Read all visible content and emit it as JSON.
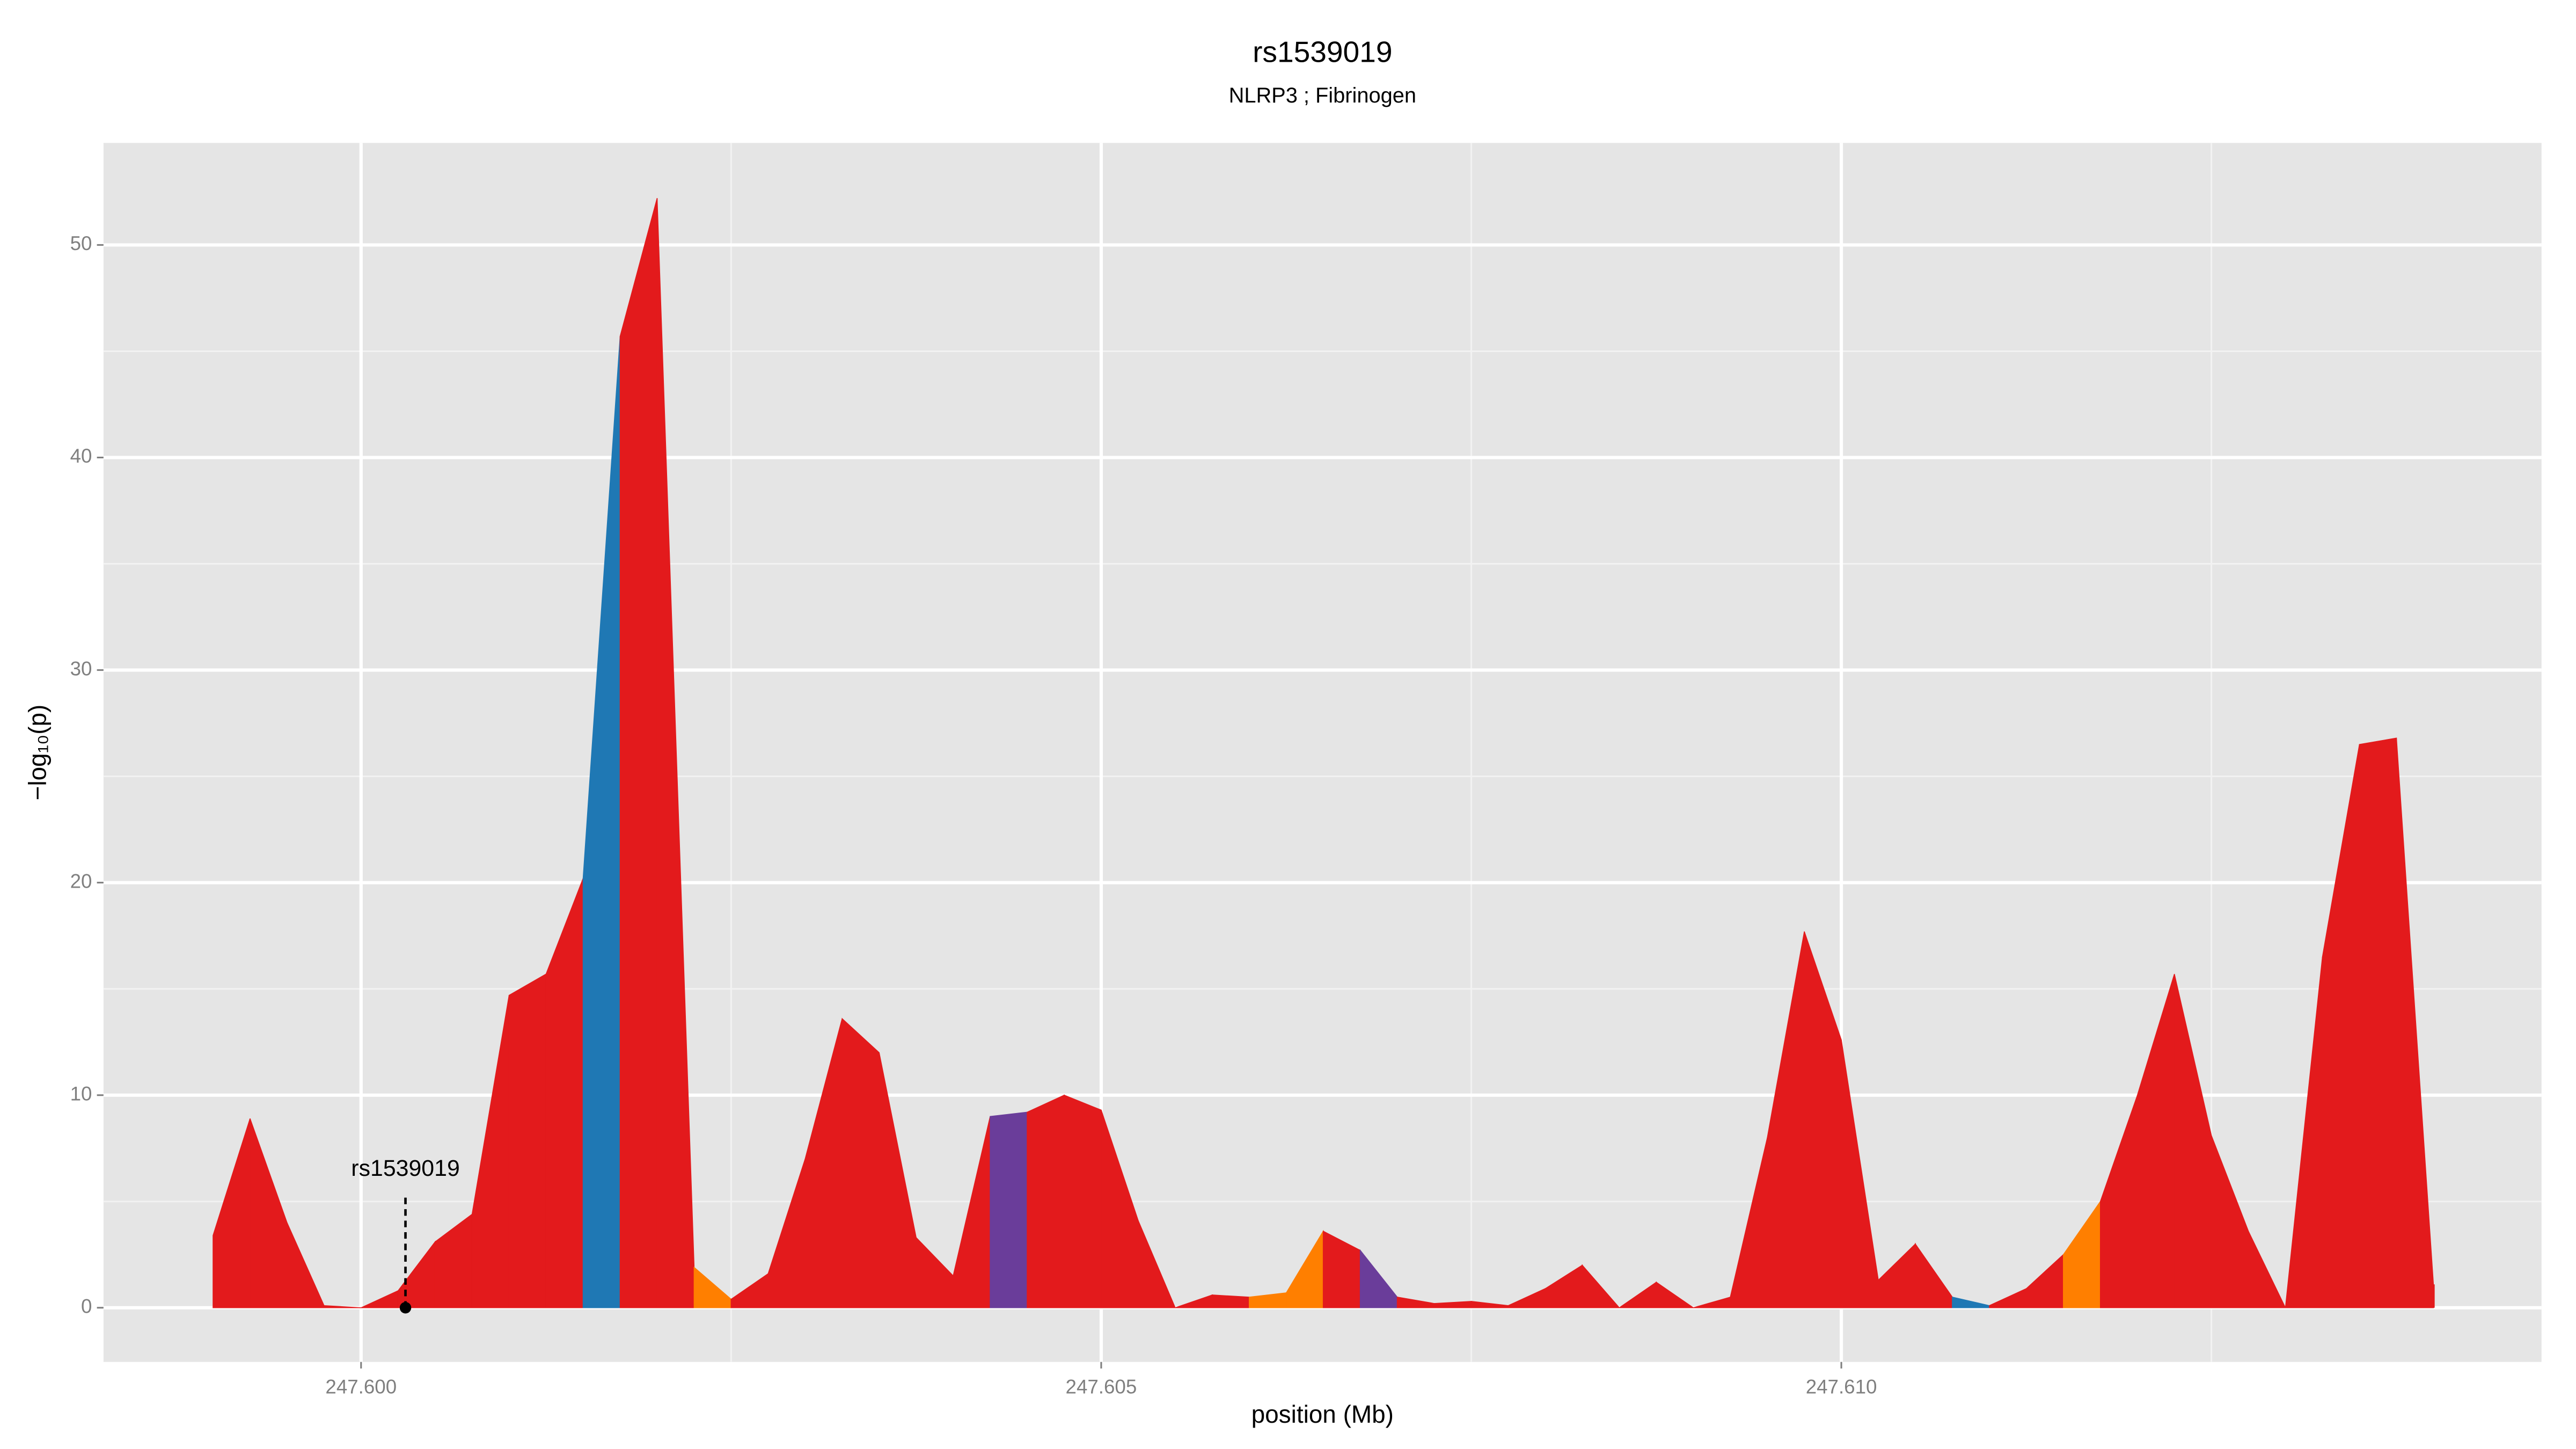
{
  "chart_data": {
    "type": "area",
    "title": "rs1539019",
    "subtitle": "NLRP3 ; Fibrinogen",
    "x_label": "position (Mb)",
    "y_label": "−log₁₀(p)",
    "x": [
      247.599,
      247.59925,
      247.5995,
      247.59975,
      247.6,
      247.60025,
      247.6005,
      247.60075,
      247.601,
      247.60125,
      247.6015,
      247.60175,
      247.602,
      247.60225,
      247.6025,
      247.60275,
      247.603,
      247.60325,
      247.6035,
      247.60375,
      247.604,
      247.60425,
      247.6045,
      247.60475,
      247.605,
      247.60525,
      247.6055,
      247.60575,
      247.606,
      247.60625,
      247.6065,
      247.60675,
      247.607,
      247.60725,
      247.6075,
      247.60775,
      247.608,
      247.60825,
      247.6085,
      247.60875,
      247.609,
      247.60925,
      247.6095,
      247.60975,
      247.61,
      247.61025,
      247.6105,
      247.61075,
      247.611,
      247.61125,
      247.6115,
      247.61175,
      247.612,
      247.61225,
      247.6125,
      247.61275,
      247.613,
      247.61325,
      247.6135,
      247.61375,
      247.614
    ],
    "values": [
      3.4,
      8.9,
      4.0,
      0.1,
      0,
      0.8,
      3.1,
      4.4,
      14.7,
      15.7,
      20.2,
      45.7,
      52.2,
      1.9,
      0.4,
      1.6,
      7.0,
      13.6,
      12.0,
      3.3,
      1.5,
      9.0,
      9.2,
      10.0,
      9.3,
      4.1,
      0,
      0.6,
      0.5,
      0.7,
      3.6,
      2.7,
      0.5,
      0.2,
      0.3,
      0.1,
      0.9,
      2.0,
      0,
      1.2,
      0,
      0.5,
      8.0,
      17.7,
      12.6,
      1.3,
      3.0,
      0.5,
      0.1,
      0.9,
      2.5,
      5.0,
      10.0,
      15.7,
      8.1,
      3.6,
      0,
      16.5,
      26.5,
      26.8,
      1.1
    ],
    "colors": [
      "#e31a1c",
      "#e31a1c",
      "#e31a1c",
      "#e31a1c",
      "#e31a1c",
      "#e31a1c",
      "#e31a1c",
      "#e31a1c",
      "#e31a1c",
      "#e31a1c",
      "#1f78b4",
      "#e31a1c",
      "#e31a1c",
      "#ff7f00",
      "#e31a1c",
      "#e31a1c",
      "#e31a1c",
      "#e31a1c",
      "#e31a1c",
      "#e31a1c",
      "#e31a1c",
      "#6a3d9a",
      "#e31a1c",
      "#e31a1c",
      "#e31a1c",
      "#e31a1c",
      "#e31a1c",
      "#e31a1c",
      "#ff7f00",
      "#ff7f00",
      "#e31a1c",
      "#6a3d9a",
      "#e31a1c",
      "#e31a1c",
      "#e31a1c",
      "#e31a1c",
      "#e31a1c",
      "#e31a1c",
      "#e31a1c",
      "#e31a1c",
      "#e31a1c",
      "#e31a1c",
      "#e31a1c",
      "#e31a1c",
      "#e31a1c",
      "#e31a1c",
      "#e31a1c",
      "#1f78b4",
      "#e31a1c",
      "#e31a1c",
      "#ff7f00",
      "#e31a1c",
      "#e31a1c",
      "#e31a1c",
      "#e31a1c",
      "#e31a1c",
      "#e31a1c",
      "#e31a1c",
      "#e31a1c",
      "#e31a1c",
      "#e31a1c"
    ],
    "xlim": [
      247.59826,
      247.61473
    ],
    "ylim": [
      -2.55,
      54.8
    ],
    "xticks": [
      {
        "value": 247.6,
        "label": "247.600"
      },
      {
        "value": 247.605,
        "label": "247.605"
      },
      {
        "value": 247.61,
        "label": "247.610"
      }
    ],
    "x_minor_ticks": [
      247.5975,
      247.6025,
      247.6075,
      247.6125
    ],
    "yticks": [
      0,
      10,
      20,
      30,
      40,
      50
    ],
    "y_minor_ticks": [
      5,
      15,
      25,
      35,
      45
    ],
    "grid": true,
    "annotation": {
      "text": "rs1539019",
      "x": 247.6003,
      "y": 0
    }
  }
}
